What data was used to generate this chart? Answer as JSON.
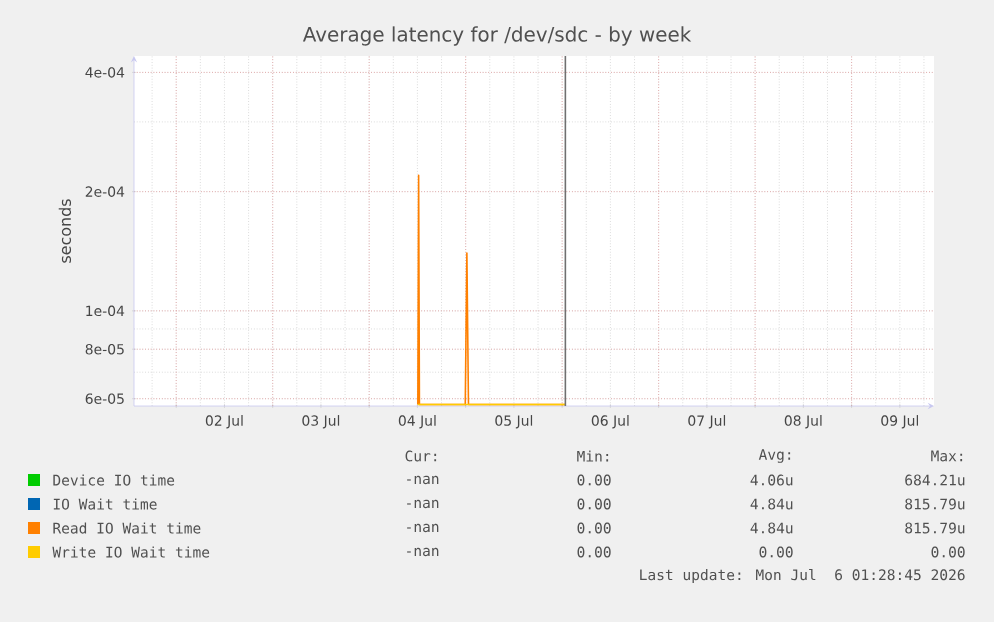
{
  "chart_data": {
    "type": "line",
    "title": "Average latency for /dev/sdc - by week",
    "ylabel": "seconds",
    "log": "y",
    "grid": true,
    "legend": "bottom",
    "xlim": [
      "2026-07-01T13:30",
      "2026-07-09T20:30"
    ],
    "xticks": [
      {
        "value": "2026-07-02T12:00",
        "label": "02 Jul"
      },
      {
        "value": "2026-07-03T12:00",
        "label": "03 Jul"
      },
      {
        "value": "2026-07-04T12:00",
        "label": "04 Jul"
      },
      {
        "value": "2026-07-05T12:00",
        "label": "05 Jul"
      },
      {
        "value": "2026-07-06T12:00",
        "label": "06 Jul"
      },
      {
        "value": "2026-07-07T12:00",
        "label": "07 Jul"
      },
      {
        "value": "2026-07-08T12:00",
        "label": "08 Jul"
      },
      {
        "value": "2026-07-09T12:00",
        "label": "09 Jul"
      }
    ],
    "ylim": [
      5.75e-05,
      0.00044
    ],
    "yticks": [
      {
        "value": 6e-05,
        "label": "6e-05"
      },
      {
        "value": 8e-05,
        "label": "8e-05"
      },
      {
        "value": 0.0001,
        "label": "1e-04"
      },
      {
        "value": 0.0002,
        "label": "2e-04"
      },
      {
        "value": 0.0004,
        "label": "4e-04"
      }
    ],
    "series": [
      {
        "name": "Device IO time",
        "color": "#00cc00"
      },
      {
        "name": "IO Wait time",
        "color": "#0066b3"
      },
      {
        "name": "Read IO Wait time",
        "color": "#ff8000",
        "x": [
          "2026-07-04T12:06",
          "2026-07-04T12:18",
          "2026-07-04T12:30",
          "2026-07-04T23:54",
          "2026-07-05T00:18",
          "2026-07-05T00:42",
          "2026-07-06T00:48"
        ],
        "values": [
          5.8e-05,
          0.00022,
          5.8e-05,
          5.8e-05,
          0.00014,
          5.8e-05,
          5.8e-05
        ]
      },
      {
        "name": "Write IO Wait time",
        "color": "#ffcc00",
        "x": [
          "2026-07-04T12:06",
          "2026-07-06T00:48"
        ],
        "values": [
          5.8e-05,
          5.8e-05
        ]
      }
    ],
    "ref_lines": [
      {
        "axis": "x",
        "value": "2026-07-06T00:48",
        "color": "#707070"
      }
    ],
    "annotations": [
      "Cur:",
      "Min:",
      "Avg:",
      "Max:",
      "-nan",
      "0.00",
      "4.06u",
      "684.21u",
      "-nan",
      "0.00",
      "4.84u",
      "815.79u",
      "-nan",
      "0.00",
      "4.84u",
      "815.79u",
      "-nan",
      "0.00",
      "0.00",
      "0.00",
      "Last update: Mon Jul  6 01:28:45 2026"
    ]
  }
}
